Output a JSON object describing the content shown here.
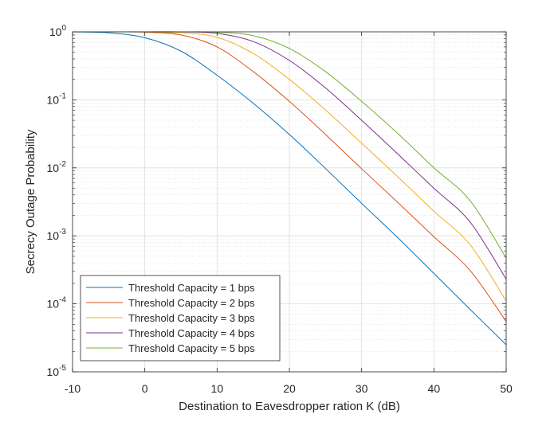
{
  "chart_data": {
    "type": "line",
    "xlabel": "Destination to Eavesdropper ration K (dB)",
    "ylabel": "Secrecy Outage Probability",
    "xlim": [
      -10,
      50
    ],
    "ylim": [
      1e-05,
      1
    ],
    "y_scale": "log",
    "grid": true,
    "minor_grid": true,
    "legend_position": "bottom-left",
    "x_ticks": [
      "-10",
      "0",
      "10",
      "20",
      "30",
      "40",
      "50"
    ],
    "y_tick_base": "10",
    "y_tick_exponents": [
      "-5",
      "-4",
      "-3",
      "-2",
      "-1",
      "0"
    ],
    "series": [
      {
        "name": "Threshold Capacity = 1 bps",
        "color": "#0072BD",
        "x": [
          -10,
          -5,
          0,
          5,
          10,
          15,
          20,
          25,
          30,
          35,
          40,
          45,
          50
        ],
        "y": [
          1.0,
          0.97,
          0.82,
          0.52,
          0.23,
          0.089,
          0.031,
          0.0098,
          0.003,
          0.00094,
          0.00028,
          8.3e-05,
          2.5e-05
        ]
      },
      {
        "name": "Threshold Capacity = 2 bps",
        "color": "#D95319",
        "x": [
          -10,
          -5,
          0,
          5,
          10,
          15,
          20,
          25,
          30,
          35,
          40,
          45,
          50
        ],
        "y": [
          1.0,
          1.0,
          0.99,
          0.9,
          0.6,
          0.26,
          0.095,
          0.031,
          0.0097,
          0.0031,
          0.00097,
          0.00031,
          5.5e-05
        ]
      },
      {
        "name": "Threshold Capacity = 3 bps",
        "color": "#EDB120",
        "x": [
          -10,
          -5,
          0,
          5,
          10,
          15,
          20,
          25,
          30,
          35,
          40,
          45,
          50
        ],
        "y": [
          1.0,
          1.0,
          1.0,
          0.97,
          0.83,
          0.48,
          0.2,
          0.071,
          0.023,
          0.0074,
          0.0023,
          0.00074,
          0.00011
        ]
      },
      {
        "name": "Threshold Capacity = 4 bps",
        "color": "#7E2F8E",
        "x": [
          -10,
          -5,
          0,
          5,
          10,
          15,
          20,
          25,
          30,
          35,
          40,
          45,
          50
        ],
        "y": [
          1.0,
          1.0,
          1.0,
          1.0,
          0.95,
          0.72,
          0.38,
          0.15,
          0.05,
          0.016,
          0.005,
          0.0016,
          0.00023
        ]
      },
      {
        "name": "Threshold Capacity = 5 bps",
        "color": "#77AC30",
        "x": [
          -10,
          -5,
          0,
          5,
          10,
          15,
          20,
          25,
          30,
          35,
          40,
          45,
          50
        ],
        "y": [
          1.0,
          1.0,
          1.0,
          1.0,
          0.99,
          0.88,
          0.57,
          0.26,
          0.095,
          0.032,
          0.01,
          0.0033,
          0.00047
        ]
      }
    ]
  }
}
